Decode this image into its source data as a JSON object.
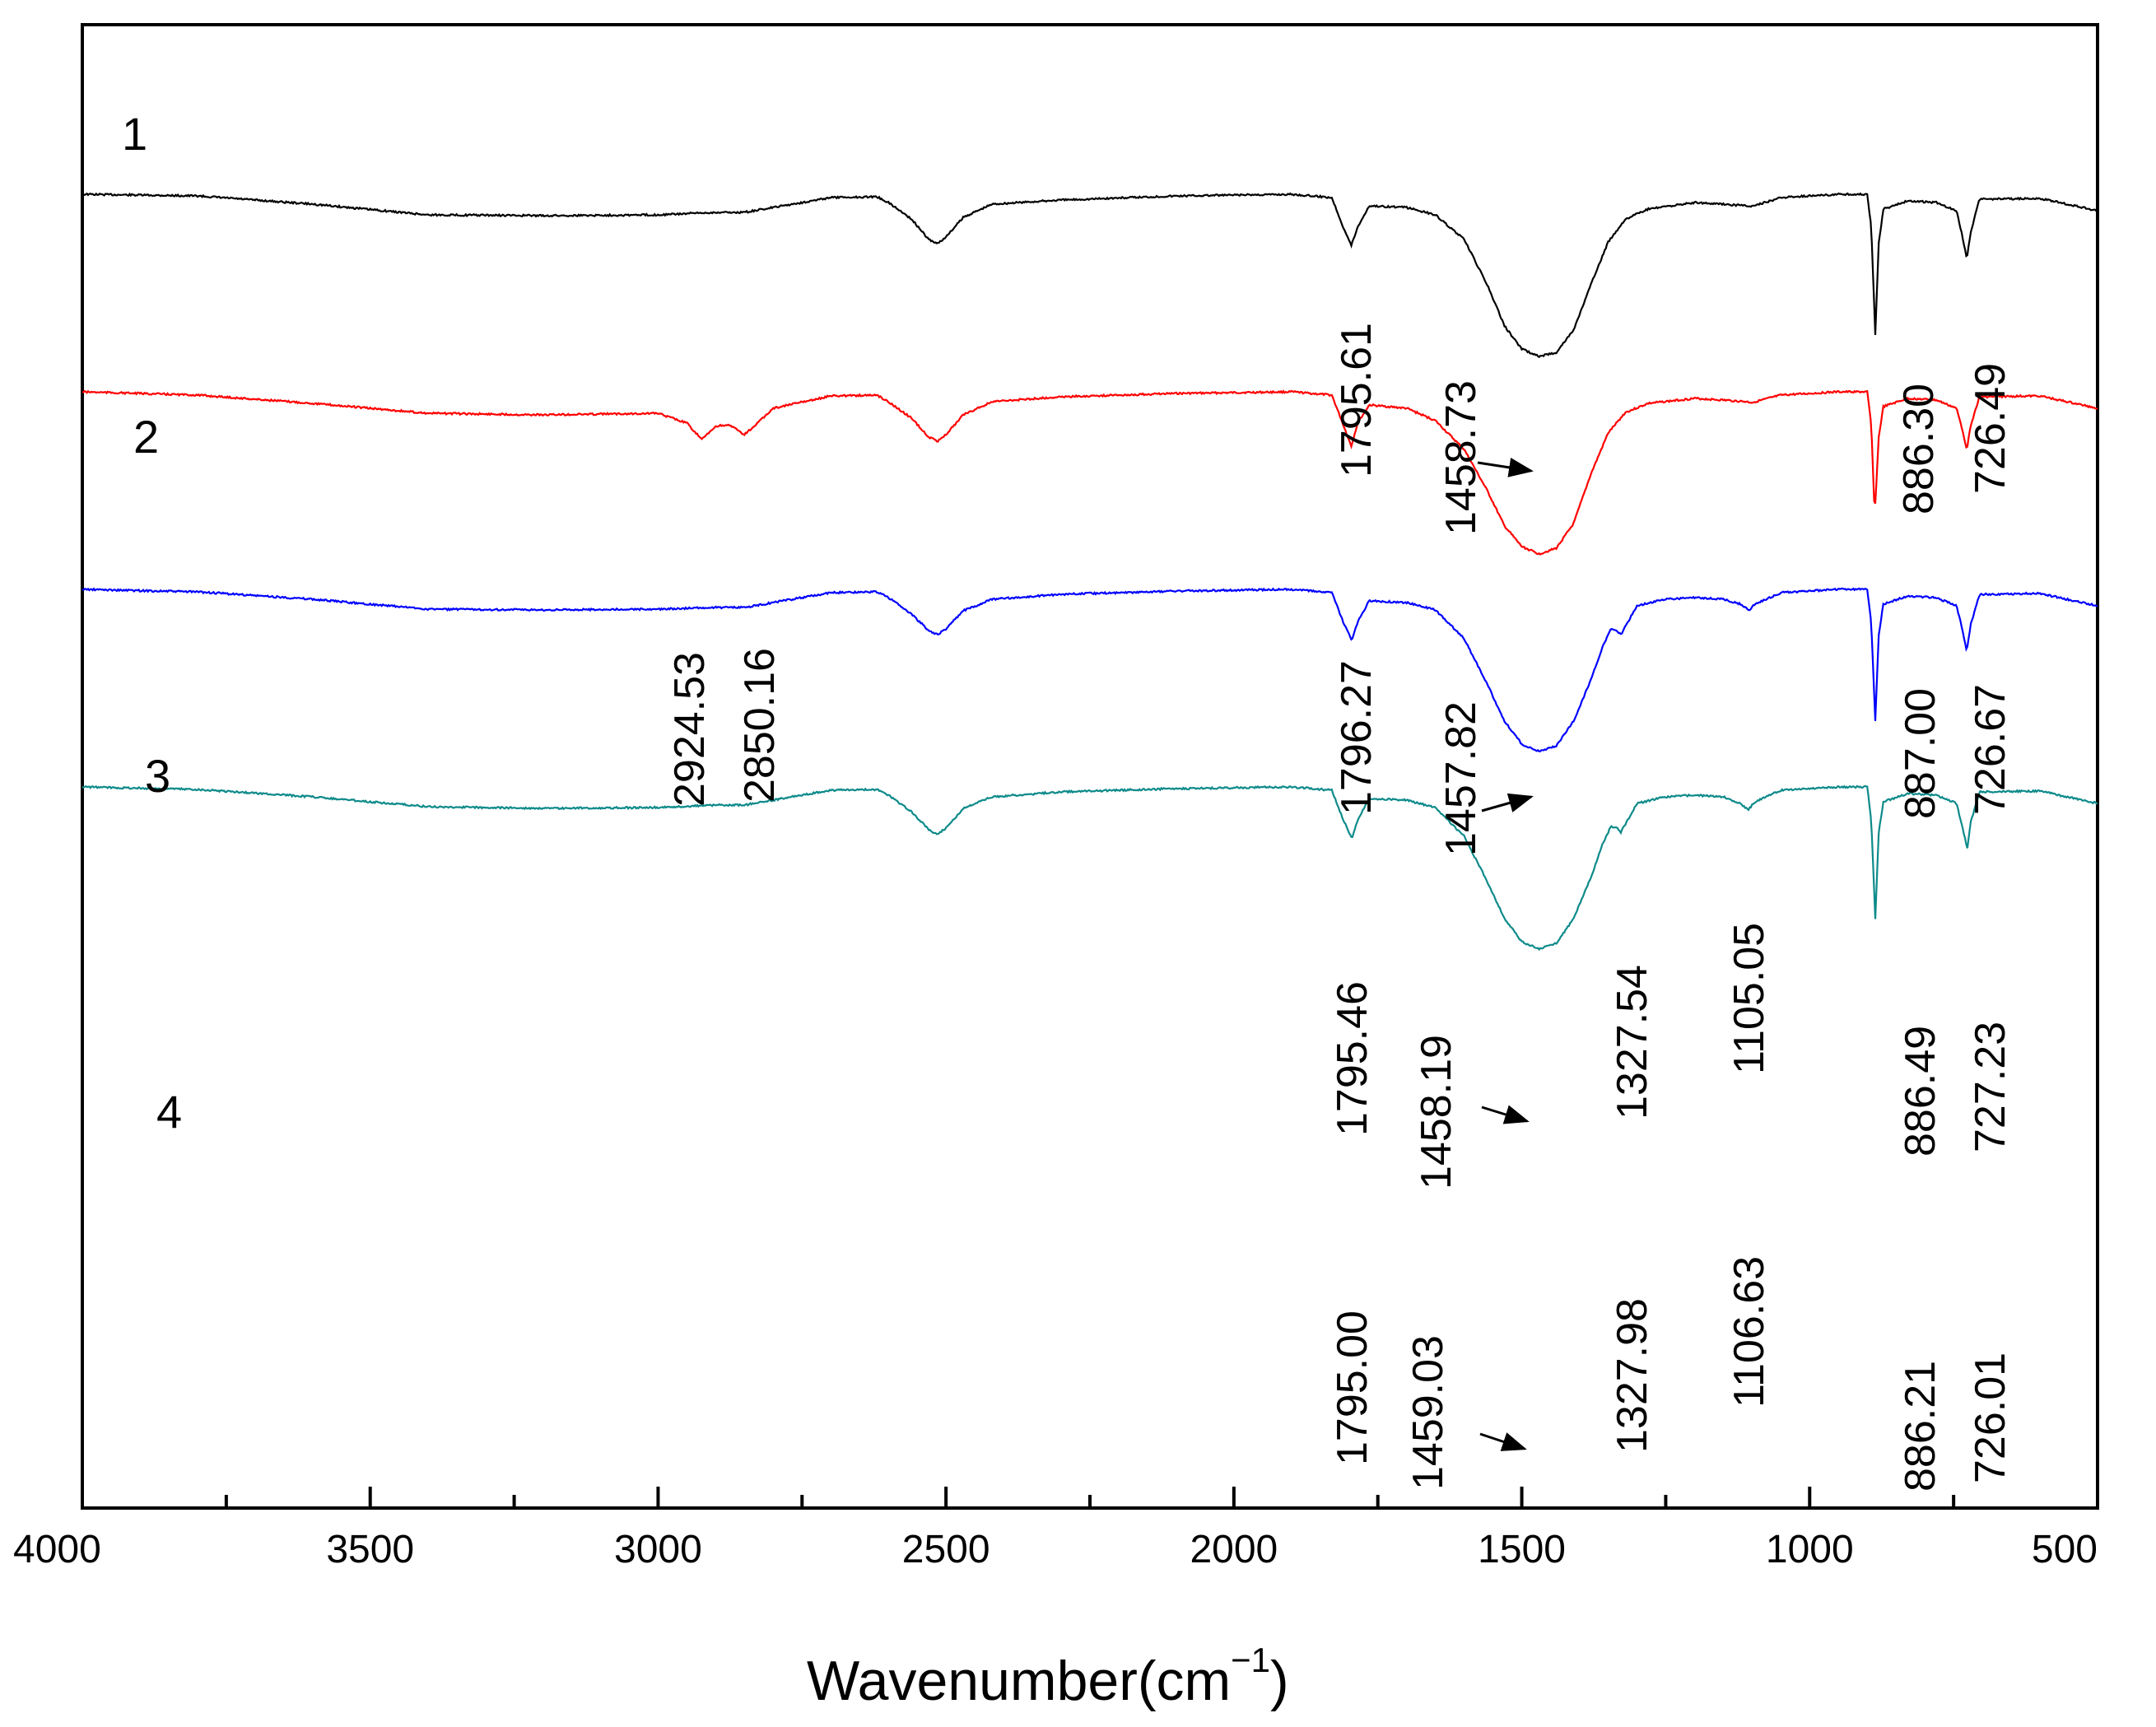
{
  "chart_data": {
    "type": "line",
    "title": "",
    "xlabel": "Wavenumber(cm",
    "xlabel_sup": "−1",
    "xlabel_close": ")",
    "ylabel": "",
    "xlim": [
      4000,
      500
    ],
    "x_reversed": true,
    "x_ticks": [
      4000,
      3500,
      3000,
      2500,
      2000,
      1500,
      1000,
      500
    ],
    "x_tick_labels": [
      "4000",
      "3500",
      "3000",
      "2500",
      "2000",
      "1500",
      "1000",
      "500"
    ],
    "y_ticks": false,
    "grid": false,
    "series": [
      {
        "name": "1",
        "color": "#000000",
        "offset": 0,
        "profile": [
          [
            4000,
            0
          ],
          [
            3800,
            2
          ],
          [
            3600,
            12
          ],
          [
            3400,
            25
          ],
          [
            3200,
            26
          ],
          [
            3000,
            25
          ],
          [
            2900,
            22
          ],
          [
            2850,
            22
          ],
          [
            2800,
            16
          ],
          [
            2700,
            4
          ],
          [
            2620,
            3
          ],
          [
            2600,
            10
          ],
          [
            2560,
            30
          ],
          [
            2530,
            55
          ],
          [
            2515,
            60
          ],
          [
            2500,
            52
          ],
          [
            2470,
            28
          ],
          [
            2420,
            12
          ],
          [
            2300,
            7
          ],
          [
            2100,
            2
          ],
          [
            1900,
            0
          ],
          [
            1830,
            4
          ],
          [
            1810,
            40
          ],
          [
            1796,
            62
          ],
          [
            1785,
            40
          ],
          [
            1765,
            14
          ],
          [
            1700,
            16
          ],
          [
            1650,
            25
          ],
          [
            1600,
            55
          ],
          [
            1560,
            110
          ],
          [
            1530,
            160
          ],
          [
            1500,
            188
          ],
          [
            1470,
            197
          ],
          [
            1440,
            192
          ],
          [
            1410,
            165
          ],
          [
            1380,
            110
          ],
          [
            1350,
            58
          ],
          [
            1320,
            30
          ],
          [
            1280,
            18
          ],
          [
            1200,
            10
          ],
          [
            1150,
            12
          ],
          [
            1110,
            14
          ],
          [
            1100,
            15
          ],
          [
            1050,
            4
          ],
          [
            950,
            0
          ],
          [
            900,
            0
          ],
          [
            893,
            40
          ],
          [
            886,
            170
          ],
          [
            880,
            60
          ],
          [
            872,
            18
          ],
          [
            830,
            8
          ],
          [
            780,
            10
          ],
          [
            745,
            20
          ],
          [
            735,
            50
          ],
          [
            727,
            78
          ],
          [
            720,
            45
          ],
          [
            705,
            6
          ],
          [
            600,
            5
          ],
          [
            500,
            20
          ]
        ],
        "peaks": [
          "1795.61",
          "1458.73",
          "886.30",
          "726.49"
        ]
      },
      {
        "name": "2",
        "color": "#ff0000",
        "offset": 240,
        "profile": [
          [
            4000,
            0
          ],
          [
            3800,
            4
          ],
          [
            3600,
            14
          ],
          [
            3400,
            26
          ],
          [
            3200,
            28
          ],
          [
            3000,
            26
          ],
          [
            2950,
            38
          ],
          [
            2924,
            58
          ],
          [
            2900,
            42
          ],
          [
            2880,
            40
          ],
          [
            2865,
            45
          ],
          [
            2850,
            52
          ],
          [
            2830,
            40
          ],
          [
            2800,
            20
          ],
          [
            2700,
            5
          ],
          [
            2620,
            4
          ],
          [
            2600,
            12
          ],
          [
            2560,
            32
          ],
          [
            2530,
            55
          ],
          [
            2515,
            60
          ],
          [
            2500,
            52
          ],
          [
            2470,
            28
          ],
          [
            2420,
            12
          ],
          [
            2300,
            6
          ],
          [
            2100,
            2
          ],
          [
            1900,
            0
          ],
          [
            1830,
            4
          ],
          [
            1810,
            40
          ],
          [
            1796,
            66
          ],
          [
            1785,
            38
          ],
          [
            1765,
            16
          ],
          [
            1700,
            20
          ],
          [
            1650,
            35
          ],
          [
            1600,
            70
          ],
          [
            1560,
            120
          ],
          [
            1530,
            163
          ],
          [
            1500,
            188
          ],
          [
            1470,
            197
          ],
          [
            1440,
            190
          ],
          [
            1410,
            160
          ],
          [
            1380,
            100
          ],
          [
            1350,
            50
          ],
          [
            1320,
            25
          ],
          [
            1280,
            14
          ],
          [
            1200,
            8
          ],
          [
            1150,
            10
          ],
          [
            1110,
            12
          ],
          [
            1100,
            13
          ],
          [
            1050,
            4
          ],
          [
            950,
            0
          ],
          [
            900,
            0
          ],
          [
            893,
            40
          ],
          [
            887,
            150
          ],
          [
            880,
            55
          ],
          [
            872,
            18
          ],
          [
            830,
            8
          ],
          [
            780,
            10
          ],
          [
            745,
            20
          ],
          [
            735,
            45
          ],
          [
            727,
            70
          ],
          [
            720,
            40
          ],
          [
            705,
            6
          ],
          [
            600,
            5
          ],
          [
            500,
            20
          ]
        ],
        "peaks": [
          "2924.53",
          "2850.16",
          "1796.27",
          "1457.82",
          "887.00",
          "726.67"
        ]
      },
      {
        "name": "3",
        "color": "#0000ff",
        "offset": 480,
        "profile": [
          [
            4000,
            0
          ],
          [
            3800,
            3
          ],
          [
            3600,
            12
          ],
          [
            3400,
            24
          ],
          [
            3200,
            25
          ],
          [
            3000,
            24
          ],
          [
            2900,
            22
          ],
          [
            2850,
            22
          ],
          [
            2800,
            16
          ],
          [
            2700,
            4
          ],
          [
            2620,
            3
          ],
          [
            2600,
            10
          ],
          [
            2560,
            30
          ],
          [
            2530,
            50
          ],
          [
            2515,
            55
          ],
          [
            2500,
            48
          ],
          [
            2470,
            26
          ],
          [
            2420,
            12
          ],
          [
            2300,
            6
          ],
          [
            2100,
            2
          ],
          [
            1900,
            0
          ],
          [
            1830,
            4
          ],
          [
            1810,
            40
          ],
          [
            1795,
            62
          ],
          [
            1785,
            40
          ],
          [
            1765,
            14
          ],
          [
            1700,
            16
          ],
          [
            1650,
            25
          ],
          [
            1600,
            60
          ],
          [
            1560,
            115
          ],
          [
            1530,
            160
          ],
          [
            1500,
            188
          ],
          [
            1470,
            197
          ],
          [
            1440,
            190
          ],
          [
            1410,
            160
          ],
          [
            1380,
            110
          ],
          [
            1360,
            70
          ],
          [
            1345,
            48
          ],
          [
            1335,
            50
          ],
          [
            1328,
            55
          ],
          [
            1320,
            45
          ],
          [
            1300,
            20
          ],
          [
            1250,
            12
          ],
          [
            1200,
            10
          ],
          [
            1150,
            12
          ],
          [
            1120,
            18
          ],
          [
            1105,
            25
          ],
          [
            1095,
            18
          ],
          [
            1050,
            4
          ],
          [
            950,
            0
          ],
          [
            900,
            0
          ],
          [
            893,
            40
          ],
          [
            886,
            160
          ],
          [
            880,
            55
          ],
          [
            872,
            18
          ],
          [
            830,
            8
          ],
          [
            780,
            10
          ],
          [
            745,
            20
          ],
          [
            735,
            48
          ],
          [
            727,
            75
          ],
          [
            720,
            42
          ],
          [
            705,
            6
          ],
          [
            600,
            5
          ],
          [
            500,
            20
          ]
        ],
        "peaks": [
          "1795.46",
          "1458.19",
          "1327.54",
          "1105.05",
          "886.49",
          "727.23"
        ]
      },
      {
        "name": "4",
        "color": "#0e8a8a",
        "offset": 720,
        "profile": [
          [
            4000,
            0
          ],
          [
            3800,
            3
          ],
          [
            3600,
            12
          ],
          [
            3400,
            24
          ],
          [
            3200,
            26
          ],
          [
            3000,
            25
          ],
          [
            2900,
            22
          ],
          [
            2850,
            22
          ],
          [
            2800,
            16
          ],
          [
            2700,
            4
          ],
          [
            2620,
            3
          ],
          [
            2600,
            10
          ],
          [
            2560,
            30
          ],
          [
            2530,
            52
          ],
          [
            2515,
            58
          ],
          [
            2500,
            50
          ],
          [
            2470,
            26
          ],
          [
            2420,
            12
          ],
          [
            2300,
            6
          ],
          [
            2100,
            2
          ],
          [
            1900,
            0
          ],
          [
            1830,
            4
          ],
          [
            1810,
            40
          ],
          [
            1795,
            62
          ],
          [
            1785,
            40
          ],
          [
            1765,
            14
          ],
          [
            1700,
            16
          ],
          [
            1650,
            25
          ],
          [
            1600,
            60
          ],
          [
            1560,
            115
          ],
          [
            1530,
            160
          ],
          [
            1500,
            188
          ],
          [
            1470,
            197
          ],
          [
            1440,
            190
          ],
          [
            1410,
            160
          ],
          [
            1380,
            110
          ],
          [
            1360,
            70
          ],
          [
            1345,
            48
          ],
          [
            1335,
            50
          ],
          [
            1328,
            55
          ],
          [
            1320,
            45
          ],
          [
            1300,
            20
          ],
          [
            1250,
            12
          ],
          [
            1200,
            10
          ],
          [
            1150,
            12
          ],
          [
            1120,
            20
          ],
          [
            1107,
            28
          ],
          [
            1095,
            18
          ],
          [
            1050,
            4
          ],
          [
            950,
            0
          ],
          [
            900,
            0
          ],
          [
            893,
            40
          ],
          [
            886,
            160
          ],
          [
            880,
            55
          ],
          [
            872,
            18
          ],
          [
            830,
            8
          ],
          [
            780,
            10
          ],
          [
            745,
            20
          ],
          [
            735,
            48
          ],
          [
            726,
            75
          ],
          [
            720,
            42
          ],
          [
            705,
            6
          ],
          [
            600,
            5
          ],
          [
            500,
            20
          ]
        ],
        "peaks": [
          "1795.00",
          "1459.03",
          "1327.98",
          "1106.63",
          "886.21",
          "726.01"
        ]
      }
    ]
  }
}
